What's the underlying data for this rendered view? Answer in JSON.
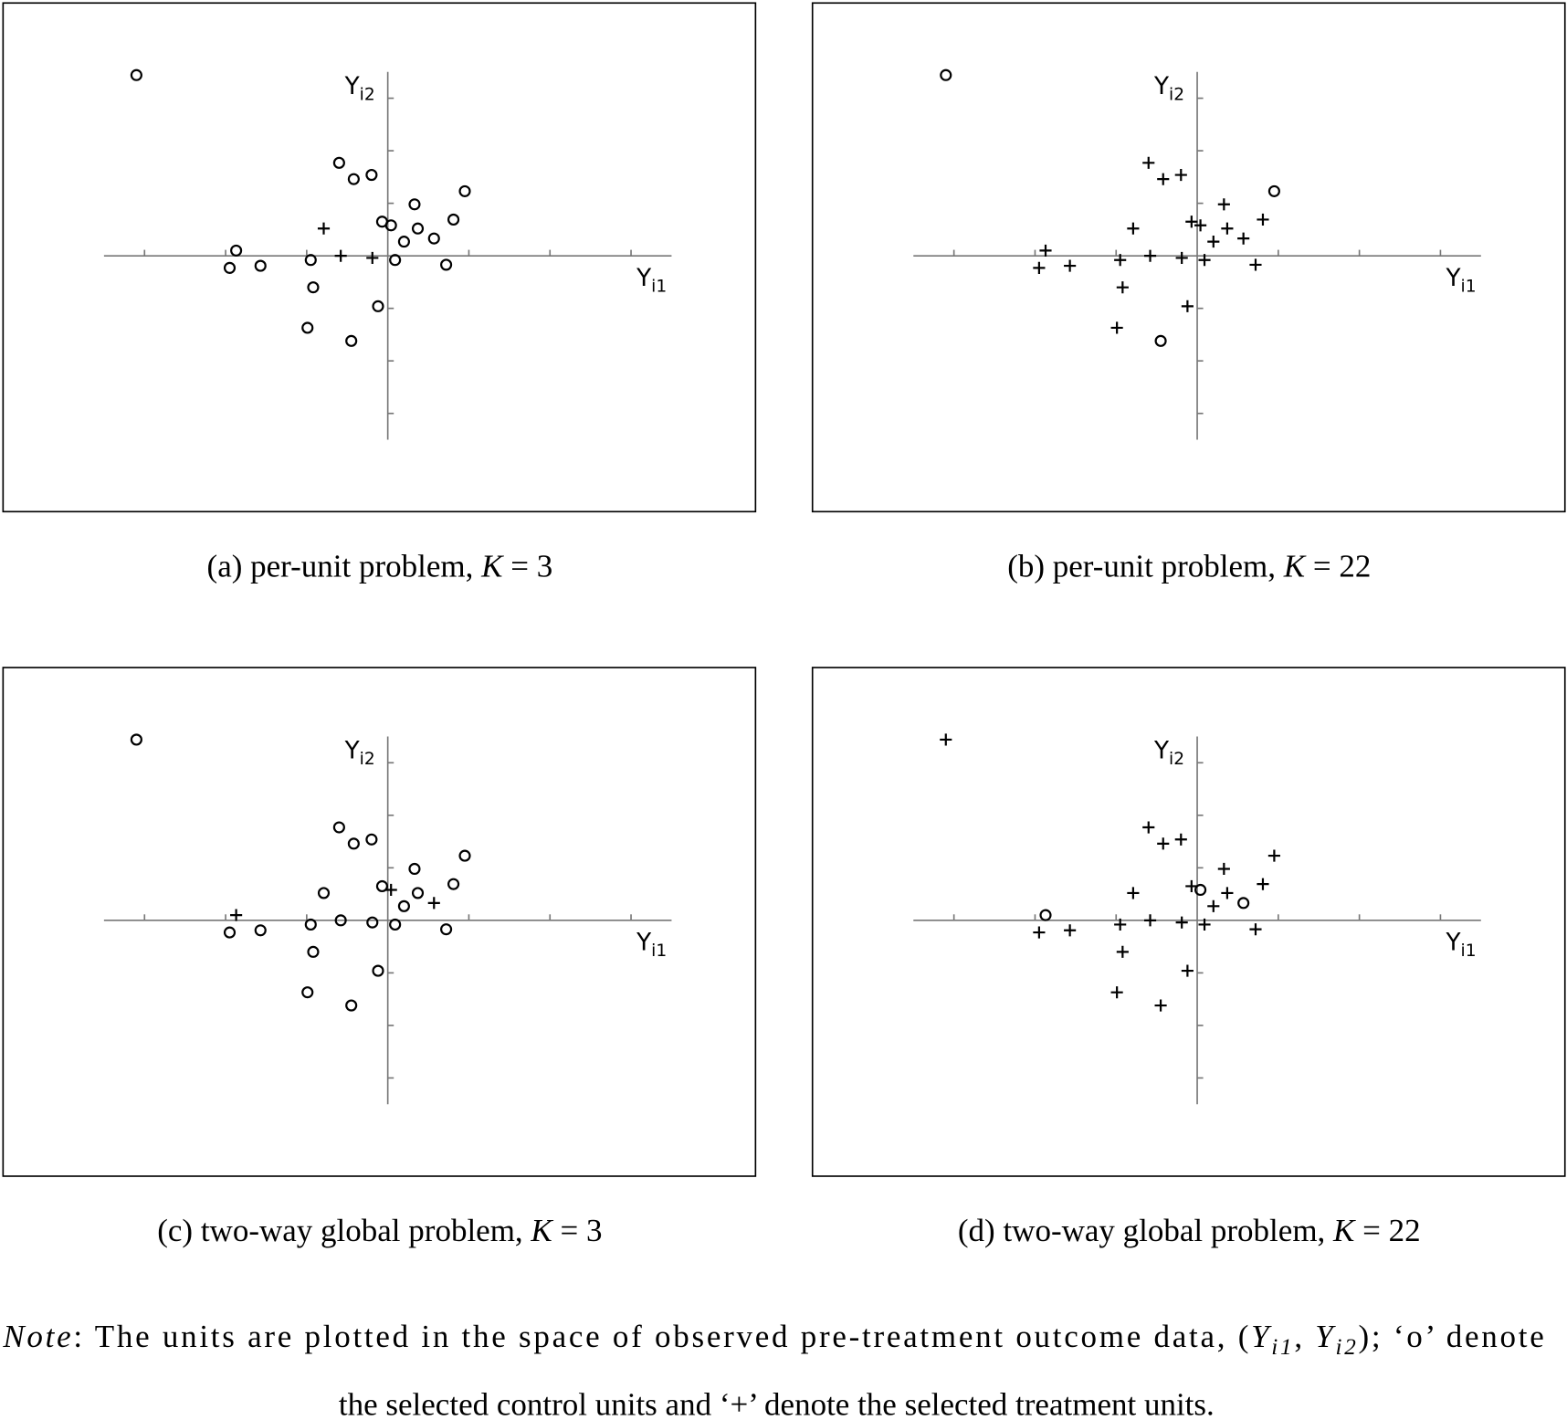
{
  "chart_data": [
    {
      "type": "scatter",
      "caption": [
        "(a) per-unit problem, ",
        "K",
        " = 3"
      ],
      "xlabel": {
        "main": "Y",
        "sub": "i1"
      },
      "ylabel": {
        "main": "Y",
        "sub": "i2"
      },
      "x": [
        -3.1,
        -0.6,
        -0.42,
        -0.2,
        0.95,
        0.33,
        -0.07,
        0.04,
        0.81,
        0.37,
        0.2,
        0.57,
        -0.79,
        -1.87,
        -1.95,
        -1.57,
        -0.95,
        -0.58,
        -0.19,
        0.09,
        0.72,
        -0.92,
        -0.12,
        -0.99,
        -0.45
      ],
      "values": [
        3.44,
        1.77,
        1.46,
        1.54,
        1.23,
        0.98,
        0.65,
        0.58,
        0.69,
        0.52,
        0.27,
        0.33,
        0.52,
        0.1,
        -0.23,
        -0.19,
        -0.08,
        0,
        -0.04,
        -0.08,
        -0.17,
        -0.6,
        -0.96,
        -1.37,
        -1.62
      ],
      "marker": [
        "o",
        "o",
        "o",
        "o",
        "o",
        "o",
        "o",
        "o",
        "o",
        "o",
        "o",
        "o",
        "+",
        "o",
        "o",
        "o",
        "o",
        "+",
        "+",
        "o",
        "o",
        "o",
        "o",
        "o",
        "o"
      ],
      "xlim": [
        -3.5,
        3.5
      ],
      "ylim": [
        -3.5,
        3.5
      ],
      "xticks": [
        -3,
        -2,
        -1,
        1,
        2,
        3
      ],
      "yticks": [
        -3,
        -2,
        -1,
        1,
        2,
        3
      ]
    },
    {
      "type": "scatter",
      "caption": [
        "(b) per-unit problem, ",
        "K",
        " = 22"
      ],
      "xlabel": {
        "main": "Y",
        "sub": "i1"
      },
      "ylabel": {
        "main": "Y",
        "sub": "i2"
      },
      "x": [
        -3.1,
        -0.6,
        -0.42,
        -0.2,
        0.95,
        0.33,
        -0.07,
        0.04,
        0.81,
        0.37,
        0.2,
        0.57,
        -0.79,
        -1.87,
        -1.95,
        -1.57,
        -0.95,
        -0.58,
        -0.19,
        0.09,
        0.72,
        -0.92,
        -0.12,
        -0.99,
        -0.45
      ],
      "values": [
        3.44,
        1.77,
        1.46,
        1.54,
        1.23,
        0.98,
        0.65,
        0.58,
        0.69,
        0.52,
        0.27,
        0.33,
        0.52,
        0.1,
        -0.23,
        -0.19,
        -0.08,
        0,
        -0.04,
        -0.08,
        -0.17,
        -0.6,
        -0.96,
        -1.37,
        -1.62
      ],
      "marker": [
        "o",
        "+",
        "+",
        "+",
        "o",
        "+",
        "+",
        "+",
        "+",
        "+",
        "+",
        "+",
        "+",
        "+",
        "+",
        "+",
        "+",
        "+",
        "+",
        "+",
        "+",
        "+",
        "+",
        "+",
        "o"
      ],
      "xlim": [
        -3.5,
        3.5
      ],
      "ylim": [
        -3.5,
        3.5
      ],
      "xticks": [
        -3,
        -2,
        -1,
        1,
        2,
        3
      ],
      "yticks": [
        -3,
        -2,
        -1,
        1,
        2,
        3
      ]
    },
    {
      "type": "scatter",
      "caption": [
        "(c) two-way global problem, ",
        "K",
        " = 3"
      ],
      "xlabel": {
        "main": "Y",
        "sub": "i1"
      },
      "ylabel": {
        "main": "Y",
        "sub": "i2"
      },
      "x": [
        -3.1,
        -0.6,
        -0.42,
        -0.2,
        0.95,
        0.33,
        -0.07,
        0.04,
        0.81,
        0.37,
        0.2,
        0.57,
        -0.79,
        -1.87,
        -1.95,
        -1.57,
        -0.95,
        -0.58,
        -0.19,
        0.09,
        0.72,
        -0.92,
        -0.12,
        -0.99,
        -0.45
      ],
      "values": [
        3.44,
        1.77,
        1.46,
        1.54,
        1.23,
        0.98,
        0.65,
        0.58,
        0.69,
        0.52,
        0.27,
        0.33,
        0.52,
        0.1,
        -0.23,
        -0.19,
        -0.08,
        0,
        -0.04,
        -0.08,
        -0.17,
        -0.6,
        -0.96,
        -1.37,
        -1.62
      ],
      "marker": [
        "o",
        "o",
        "o",
        "o",
        "o",
        "o",
        "o",
        "+",
        "o",
        "o",
        "o",
        "+",
        "o",
        "+",
        "o",
        "o",
        "o",
        "o",
        "o",
        "o",
        "o",
        "o",
        "o",
        "o",
        "o"
      ],
      "xlim": [
        -3.5,
        3.5
      ],
      "ylim": [
        -3.5,
        3.5
      ],
      "xticks": [
        -3,
        -2,
        -1,
        1,
        2,
        3
      ],
      "yticks": [
        -3,
        -2,
        -1,
        1,
        2,
        3
      ]
    },
    {
      "type": "scatter",
      "caption": [
        "(d) two-way global problem, ",
        "K",
        " = 22"
      ],
      "xlabel": {
        "main": "Y",
        "sub": "i1"
      },
      "ylabel": {
        "main": "Y",
        "sub": "i2"
      },
      "x": [
        -3.1,
        -0.6,
        -0.42,
        -0.2,
        0.95,
        0.33,
        -0.07,
        0.04,
        0.81,
        0.37,
        0.2,
        0.57,
        -0.79,
        -1.87,
        -1.95,
        -1.57,
        -0.95,
        -0.58,
        -0.19,
        0.09,
        0.72,
        -0.92,
        -0.12,
        -0.99,
        -0.45
      ],
      "values": [
        3.44,
        1.77,
        1.46,
        1.54,
        1.23,
        0.98,
        0.65,
        0.58,
        0.69,
        0.52,
        0.27,
        0.33,
        0.52,
        0.1,
        -0.23,
        -0.19,
        -0.08,
        0,
        -0.04,
        -0.08,
        -0.17,
        -0.6,
        -0.96,
        -1.37,
        -1.62
      ],
      "marker": [
        "+",
        "+",
        "+",
        "+",
        "+",
        "+",
        "+",
        "o",
        "+",
        "+",
        "+",
        "o",
        "+",
        "o",
        "+",
        "+",
        "+",
        "+",
        "+",
        "+",
        "+",
        "+",
        "+",
        "+",
        "+"
      ],
      "xlim": [
        -3.5,
        3.5
      ],
      "ylim": [
        -3.5,
        3.5
      ],
      "xticks": [
        -3,
        -2,
        -1,
        1,
        2,
        3
      ],
      "yticks": [
        -3,
        -2,
        -1,
        1,
        2,
        3
      ]
    }
  ],
  "note": {
    "label": "Note",
    "line1": [
      ": The units are plotted in the space of observed pre-treatment outcome data, (",
      "Y",
      "i1",
      ", ",
      "Y",
      "i2",
      "); ‘o’ denote"
    ],
    "line2": "the selected control units and ‘+’ denote the selected treatment units."
  }
}
